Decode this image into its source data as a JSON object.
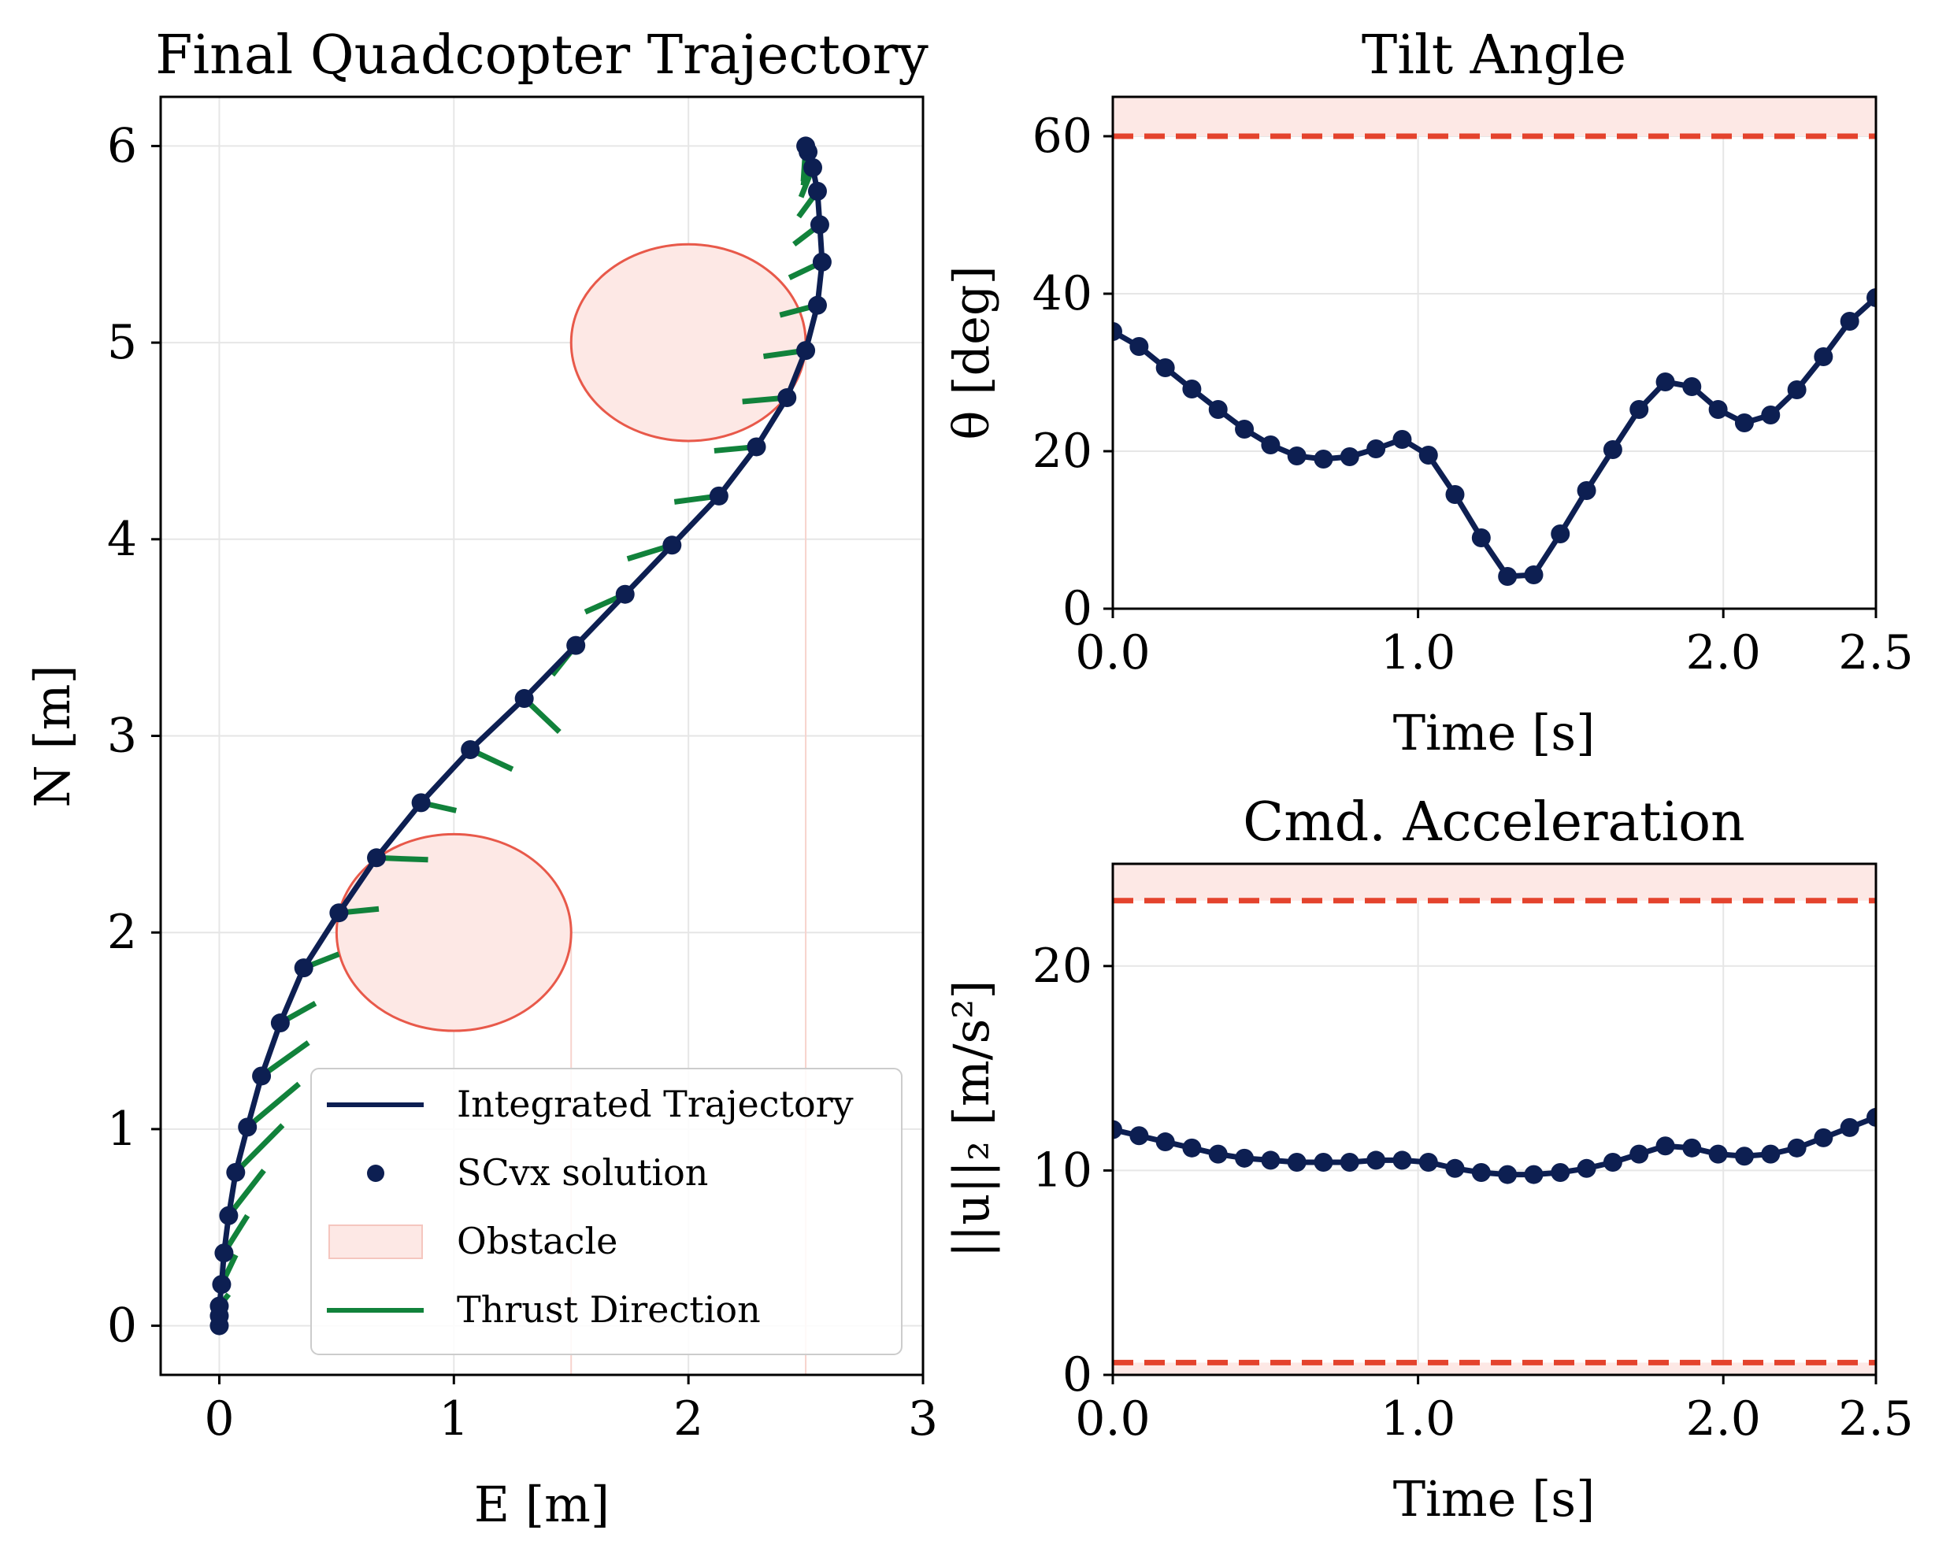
{
  "colors": {
    "trajectory": "#0d1f52",
    "thrust": "#11823b",
    "obstacle_fill": "#fde8e5",
    "obstacle_edge": "#e8594a",
    "limit_line": "#e4432d",
    "limit_fill": "#fde8e5",
    "grid": "#e6e6e6"
  },
  "chart_data": [
    {
      "type": "line",
      "title": "Final Quadcopter Trajectory",
      "xlabel": "E [m]",
      "ylabel": "N [m]",
      "xlim": [
        -0.25,
        3.0
      ],
      "ylim": [
        -0.25,
        6.25
      ],
      "xticks": [
        0,
        1,
        2,
        3
      ],
      "yticks": [
        0,
        1,
        2,
        3,
        4,
        5,
        6
      ],
      "grid": true,
      "legend": {
        "placement": "lower-right",
        "entries": [
          "Integrated Trajectory",
          "SCvx solution",
          "Obstacle",
          "Thrust Direction"
        ]
      },
      "obstacles": [
        {
          "center": [
            1.0,
            2.0
          ],
          "radius": 0.5
        },
        {
          "center": [
            2.0,
            5.0
          ],
          "radius": 0.5
        }
      ],
      "series": [
        {
          "name": "SCvx solution",
          "x": [
            0.0,
            0.0,
            0.0,
            0.01,
            0.02,
            0.04,
            0.07,
            0.12,
            0.18,
            0.26,
            0.36,
            0.51,
            0.67,
            0.86,
            1.07,
            1.3,
            1.52,
            1.73,
            1.93,
            2.13,
            2.29,
            2.42,
            2.5,
            2.55,
            2.57,
            2.56,
            2.55,
            2.53,
            2.51,
            2.5
          ],
          "y": [
            0.0,
            0.05,
            0.1,
            0.21,
            0.37,
            0.56,
            0.78,
            1.01,
            1.27,
            1.54,
            1.82,
            2.1,
            2.38,
            2.66,
            2.93,
            3.19,
            3.46,
            3.72,
            3.97,
            4.22,
            4.47,
            4.72,
            4.96,
            5.19,
            5.41,
            5.6,
            5.77,
            5.89,
            5.97,
            6.0
          ]
        }
      ],
      "thrust_direction": {
        "dx": [
          0.03,
          0.03,
          0.04,
          0.06,
          0.1,
          0.15,
          0.2,
          0.22,
          0.2,
          0.15,
          0.15,
          0.17,
          0.22,
          0.15,
          0.18,
          0.15,
          -0.1,
          -0.17,
          -0.19,
          -0.19,
          -0.18,
          -0.19,
          -0.18,
          -0.16,
          -0.14,
          -0.11,
          -0.08,
          -0.05,
          -0.02,
          -0.01
        ],
        "dy": [
          0.02,
          0.03,
          0.06,
          0.15,
          0.19,
          0.23,
          0.24,
          0.22,
          0.17,
          0.1,
          0.07,
          0.02,
          -0.01,
          -0.04,
          -0.1,
          -0.17,
          -0.15,
          -0.09,
          -0.07,
          -0.03,
          -0.02,
          -0.02,
          -0.03,
          -0.05,
          -0.08,
          -0.1,
          -0.13,
          -0.15,
          -0.17,
          -0.18
        ]
      }
    },
    {
      "type": "line",
      "title": "Tilt Angle",
      "xlabel": "Time [s]",
      "ylabel": "θ [deg]",
      "xlim": [
        0.0,
        2.5
      ],
      "ylim": [
        0,
        65
      ],
      "xticks": [
        "0.0",
        "1.0",
        "2.0",
        "2.5"
      ],
      "yticks": [
        0,
        20,
        40,
        60
      ],
      "grid": true,
      "limits": [
        {
          "value": 60,
          "shade_above": true
        }
      ],
      "x": [
        0.0,
        0.086,
        0.172,
        0.259,
        0.345,
        0.431,
        0.517,
        0.603,
        0.69,
        0.776,
        0.862,
        0.948,
        1.034,
        1.121,
        1.207,
        1.293,
        1.379,
        1.466,
        1.552,
        1.638,
        1.724,
        1.81,
        1.897,
        1.983,
        2.069,
        2.155,
        2.241,
        2.328,
        2.414,
        2.5
      ],
      "values": [
        35.2,
        33.3,
        30.6,
        27.9,
        25.3,
        22.8,
        20.8,
        19.4,
        19.0,
        19.3,
        20.3,
        21.5,
        19.5,
        14.5,
        9.0,
        4.1,
        4.3,
        9.5,
        15.0,
        20.2,
        25.3,
        28.8,
        28.2,
        25.3,
        23.6,
        24.6,
        27.8,
        32.0,
        36.5,
        39.5
      ]
    },
    {
      "type": "line",
      "title": "Cmd. Acceleration",
      "xlabel": "Time [s]",
      "ylabel": "||u||₂ [m/s²]",
      "xlim": [
        0.0,
        2.5
      ],
      "ylim": [
        0,
        25
      ],
      "xticks": [
        "0.0",
        "1.0",
        "2.0",
        "2.5"
      ],
      "yticks": [
        0,
        10,
        20
      ],
      "grid": true,
      "limits": [
        {
          "value": 23.2,
          "shade_above": true
        },
        {
          "value": 0.6,
          "shade_below": true
        }
      ],
      "x": [
        0.0,
        0.086,
        0.172,
        0.259,
        0.345,
        0.431,
        0.517,
        0.603,
        0.69,
        0.776,
        0.862,
        0.948,
        1.034,
        1.121,
        1.207,
        1.293,
        1.379,
        1.466,
        1.552,
        1.638,
        1.724,
        1.81,
        1.897,
        1.983,
        2.069,
        2.155,
        2.241,
        2.328,
        2.414,
        2.5
      ],
      "values": [
        12.0,
        11.7,
        11.4,
        11.1,
        10.8,
        10.6,
        10.5,
        10.4,
        10.4,
        10.4,
        10.5,
        10.5,
        10.4,
        10.1,
        9.9,
        9.8,
        9.8,
        9.9,
        10.1,
        10.4,
        10.8,
        11.2,
        11.1,
        10.8,
        10.7,
        10.8,
        11.1,
        11.6,
        12.1,
        12.6
      ]
    }
  ]
}
